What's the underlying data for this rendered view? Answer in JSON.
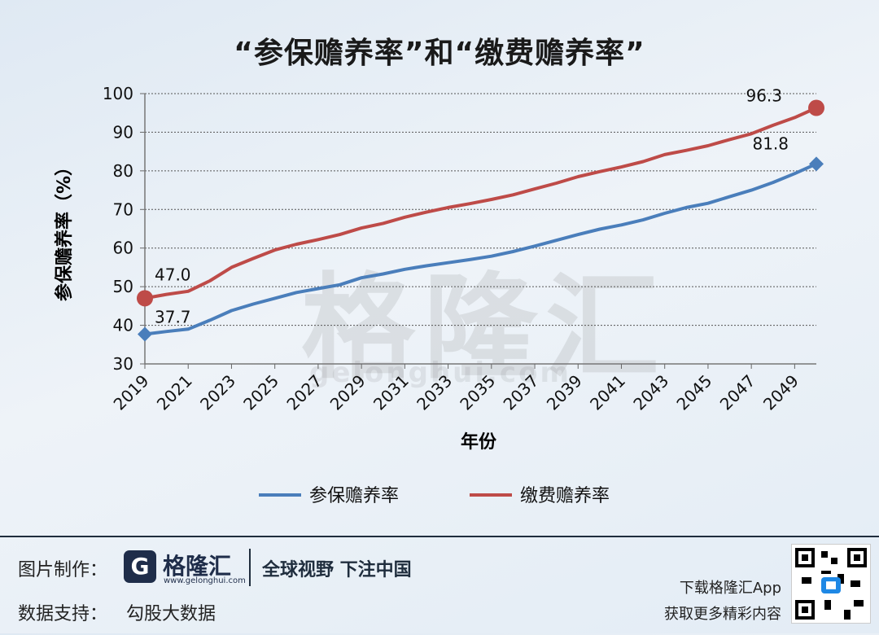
{
  "chart_data": {
    "type": "line",
    "title": "“参保赡养率”和“缴费赡养率”",
    "xlabel": "年份",
    "ylabel": "参保赡养率（%）",
    "ylim": [
      30,
      100
    ],
    "yticks": [
      30,
      40,
      50,
      60,
      70,
      80,
      90,
      100
    ],
    "xticks": [
      "2019",
      "2021",
      "2023",
      "2025",
      "2027",
      "2029",
      "2031",
      "2033",
      "2035",
      "2037",
      "2039",
      "2041",
      "2043",
      "2045",
      "2047",
      "2049"
    ],
    "x": [
      2019,
      2020,
      2021,
      2022,
      2023,
      2024,
      2025,
      2026,
      2027,
      2028,
      2029,
      2030,
      2031,
      2032,
      2033,
      2034,
      2035,
      2036,
      2037,
      2038,
      2039,
      2040,
      2041,
      2042,
      2043,
      2044,
      2045,
      2046,
      2047,
      2048,
      2049,
      2050
    ],
    "grid": true,
    "legend": "bottom",
    "series": [
      {
        "name": "参保赡养率",
        "color": "#4a7ebb",
        "marker": "diamond",
        "values": [
          37.7,
          38.4,
          39.0,
          41.3,
          43.8,
          45.5,
          47.0,
          48.5,
          49.5,
          50.5,
          52.3,
          53.3,
          54.5,
          55.4,
          56.2,
          57.0,
          57.9,
          59.1,
          60.5,
          62.0,
          63.5,
          64.9,
          66.0,
          67.3,
          69.0,
          70.5,
          71.6,
          73.3,
          75.0,
          77.0,
          79.3,
          81.8
        ],
        "end_labels": {
          "first": "37.7",
          "last": "81.8"
        }
      },
      {
        "name": "缴费赡养率",
        "color": "#be4b48",
        "marker": "circle",
        "values": [
          47.0,
          48.0,
          48.8,
          51.5,
          55.0,
          57.3,
          59.5,
          61.0,
          62.2,
          63.5,
          65.2,
          66.4,
          68.0,
          69.3,
          70.5,
          71.5,
          72.6,
          73.8,
          75.3,
          76.8,
          78.5,
          79.8,
          81.0,
          82.4,
          84.2,
          85.3,
          86.5,
          88.1,
          89.6,
          91.8,
          93.8,
          96.3
        ],
        "end_labels": {
          "first": "47.0",
          "last": "96.3"
        }
      }
    ]
  },
  "watermark": {
    "text": "格隆汇",
    "url": "gelonghui.com"
  },
  "footer": {
    "credit_label": "图片制作：",
    "logo_mark": "G",
    "logo_name": "格隆汇",
    "logo_url": "www.gelonghui.com",
    "slogan": "全球视野 下注中国",
    "data_label": "数据支持：",
    "data_source": "勾股大数据",
    "app_line1": "下载格隆汇App",
    "app_line2": "获取更多精彩内容"
  }
}
